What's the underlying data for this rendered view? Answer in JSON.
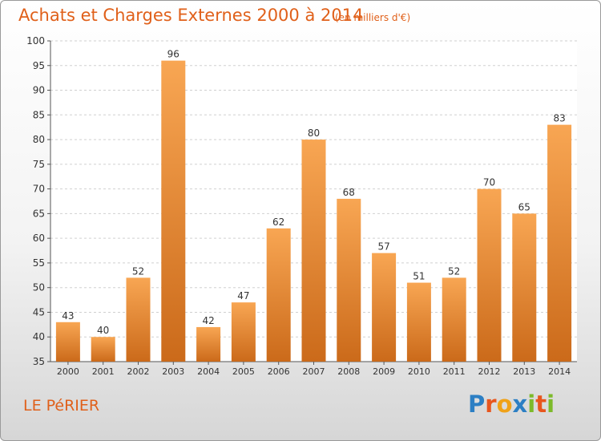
{
  "chart_data": {
    "type": "bar",
    "title": "Achats et Charges Externes 2000 à 2014",
    "subtitle": "(en milliers d'€)",
    "categories": [
      "2000",
      "2001",
      "2002",
      "2003",
      "2004",
      "2005",
      "2006",
      "2007",
      "2008",
      "2009",
      "2010",
      "2011",
      "2012",
      "2013",
      "2014"
    ],
    "values": [
      43,
      40,
      52,
      96,
      42,
      47,
      62,
      80,
      68,
      57,
      51,
      52,
      70,
      65,
      83
    ],
    "ylim": [
      35,
      100
    ],
    "yticks": [
      35,
      40,
      45,
      50,
      55,
      60,
      65,
      70,
      75,
      80,
      85,
      90,
      95,
      100
    ],
    "grid": true,
    "bar_color_top": "#f8a653",
    "bar_color_bottom": "#cb6a1a"
  },
  "footer": {
    "place": "LE PéRIER"
  },
  "logo": {
    "letters": [
      {
        "char": "P",
        "color": "#2c7fc4"
      },
      {
        "char": "r",
        "color": "#e8561e"
      },
      {
        "char": "o",
        "color": "#f0a218"
      },
      {
        "char": "x",
        "color": "#2c7fc4"
      },
      {
        "char": "i",
        "color": "#7dba2a"
      },
      {
        "char": "t",
        "color": "#e8561e"
      },
      {
        "char": "i",
        "color": "#7dba2a"
      }
    ]
  }
}
